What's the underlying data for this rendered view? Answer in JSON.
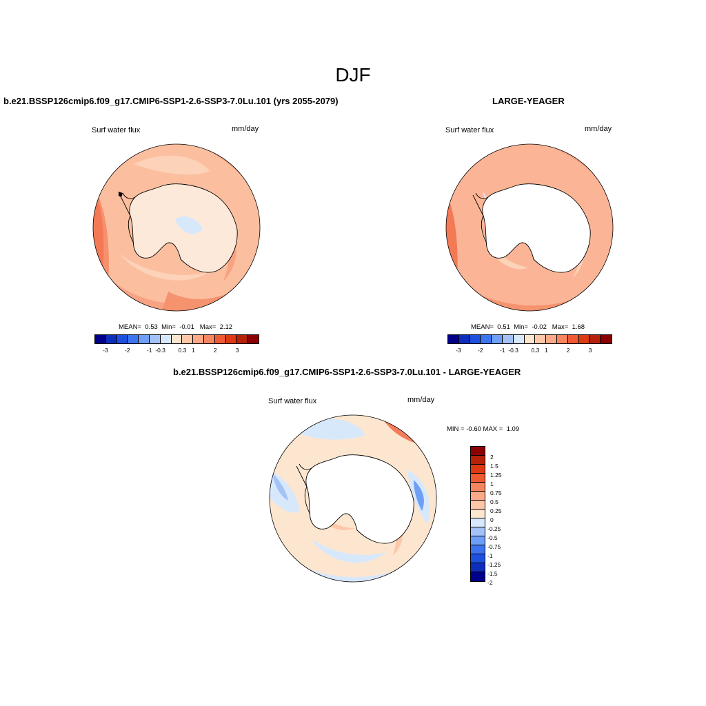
{
  "figure": {
    "title": "DJF"
  },
  "panels": [
    {
      "title": "b.e21.BSSP126cmip6.f09_g17.CMIP6-SSP1-2.6-SSP3-7.0Lu.101 (yrs 2055-2079)",
      "variable": "Surf water flux",
      "units": "mm/day",
      "stats": {
        "mean_label": "MEAN=",
        "mean": "0.53",
        "min_label": "Min=",
        "min": "-0.01",
        "max_label": "Max=",
        "max": "2.12"
      }
    },
    {
      "title": "LARGE-YEAGER",
      "variable": "Surf water flux",
      "units": "mm/day",
      "stats": {
        "mean_label": "MEAN=",
        "mean": "0.51",
        "min_label": "Min=",
        "min": "-0.02",
        "max_label": "Max=",
        "max": "1.68"
      }
    },
    {
      "title": "b.e21.BSSP126cmip6.f09_g17.CMIP6-SSP1-2.6-SSP3-7.0Lu.101 - LARGE-YEAGER",
      "variable": "Surf water flux",
      "units": "mm/day",
      "minmax": {
        "min_label": "MIN =",
        "min": "-0.60",
        "max_label": "MAX =",
        "max": "1.09"
      }
    }
  ],
  "colorbar_main": {
    "colors": [
      "#00008b",
      "#0d2ebd",
      "#1e50e0",
      "#3c74f0",
      "#6e9ef5",
      "#a4c2f7",
      "#d8e8fb",
      "#fde6d0",
      "#fcc8a8",
      "#fba987",
      "#f78560",
      "#f05a32",
      "#dd3a14",
      "#b52109",
      "#8b0000"
    ],
    "labels": [
      "-3",
      "-2",
      "-1",
      "-0.3",
      "0.3",
      "1",
      "2",
      "3"
    ]
  },
  "colorbar_diff": {
    "colors": [
      "#8b0000",
      "#b52109",
      "#dd3a14",
      "#f05a32",
      "#f78560",
      "#fba987",
      "#fcc8a8",
      "#fde6d0",
      "#d8e8fb",
      "#a4c2f7",
      "#6e9ef5",
      "#3c74f0",
      "#1e50e0",
      "#0d2ebd",
      "#00008b"
    ],
    "labels": [
      "2",
      "1.5",
      "1.25",
      "1",
      "0.75",
      "0.5",
      "0.25",
      "0",
      "-0.25",
      "-0.5",
      "-0.75",
      "-1",
      "-1.25",
      "-1.5",
      "-2"
    ]
  }
}
